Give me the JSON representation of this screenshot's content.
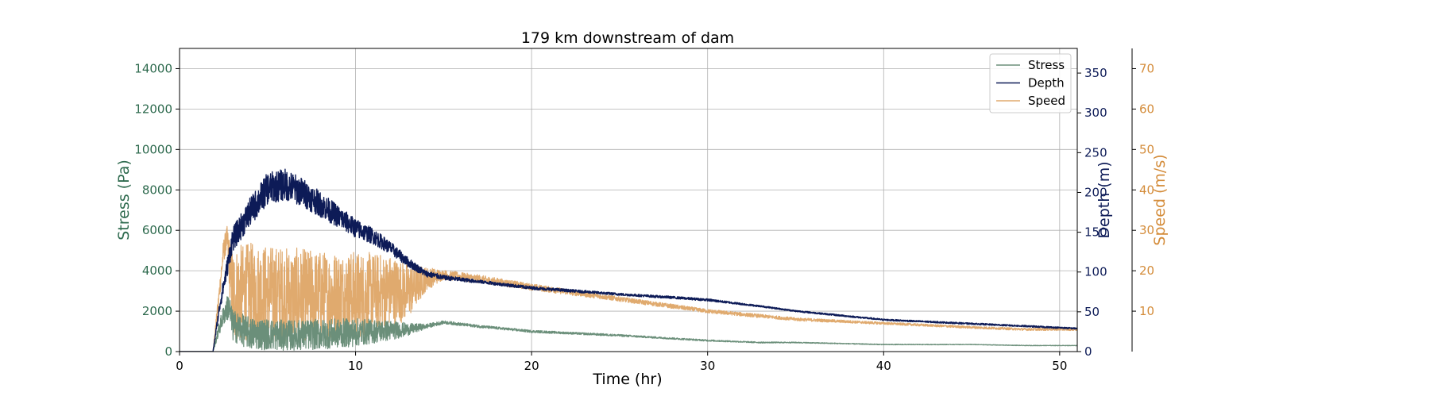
{
  "chart_data": {
    "type": "line",
    "title": "179 km downstream of dam",
    "xlabel": "Time (hr)",
    "xlim": [
      0,
      51
    ],
    "xticks": [
      0,
      10,
      20,
      30,
      40,
      50
    ],
    "grid": true,
    "legend_position": "top-right",
    "axes": {
      "stress": {
        "label": "Stress (Pa)",
        "color": "#2f6b4f",
        "ylim": [
          0,
          15000
        ],
        "ticks": [
          0,
          2000,
          4000,
          6000,
          8000,
          10000,
          12000,
          14000
        ]
      },
      "depth": {
        "label": "Depth (m)",
        "color": "#0d1b57",
        "ylim": [
          0,
          381
        ],
        "ticks": [
          0,
          50,
          100,
          150,
          200,
          250,
          300,
          350
        ]
      },
      "speed": {
        "label": "Speed (m/s)",
        "color": "#d48c3a",
        "ylim": [
          0,
          75
        ],
        "ticks": [
          10,
          20,
          30,
          40,
          50,
          60,
          70
        ]
      }
    },
    "series": [
      {
        "name": "Stress",
        "axis": "stress",
        "color": "#6b8f7a",
        "x": [
          0,
          1.9,
          2.2,
          2.5,
          2.8,
          3,
          4,
          6,
          8,
          10,
          12,
          13,
          14,
          15,
          17,
          20,
          25,
          30,
          33,
          35,
          40,
          45,
          48,
          51
        ],
        "y": [
          0,
          0,
          1000,
          1800,
          2300,
          1300,
          900,
          800,
          850,
          950,
          1050,
          1100,
          1250,
          1450,
          1250,
          1000,
          800,
          550,
          450,
          450,
          350,
          350,
          300,
          300
        ],
        "noise": [
          0,
          0,
          300,
          500,
          700,
          800,
          800,
          750,
          750,
          700,
          500,
          300,
          120,
          80,
          70,
          60,
          50,
          40,
          30,
          25,
          20,
          15,
          15,
          12
        ]
      },
      {
        "name": "Depth",
        "axis": "depth",
        "color": "#0d1b57",
        "x": [
          0,
          1.9,
          2.3,
          2.7,
          3,
          4,
          5,
          6,
          7,
          8,
          9,
          10,
          11,
          12,
          13,
          14,
          15,
          17,
          20,
          25,
          28,
          30,
          33,
          35,
          40,
          45,
          48,
          51
        ],
        "y": [
          0,
          0,
          60,
          105,
          140,
          175,
          205,
          210,
          200,
          185,
          170,
          155,
          145,
          130,
          112,
          98,
          93,
          88,
          80,
          72,
          68,
          65,
          57,
          51,
          40,
          35,
          32,
          29
        ],
        "noise": [
          0,
          0,
          8,
          12,
          15,
          18,
          20,
          20,
          18,
          16,
          14,
          12,
          10,
          8,
          6,
          4,
          3,
          2,
          2,
          1.5,
          1.5,
          1.5,
          1,
          1,
          1,
          1,
          1,
          1
        ]
      },
      {
        "name": "Speed",
        "axis": "speed",
        "color": "#e0aa6e",
        "x": [
          0,
          1.9,
          2.2,
          2.5,
          2.7,
          3,
          4,
          6,
          8,
          10,
          12,
          13,
          14,
          15,
          17,
          20,
          25,
          30,
          35,
          40,
          45,
          48,
          51
        ],
        "y": [
          0,
          0,
          12,
          25,
          28,
          14,
          15,
          14,
          14,
          14,
          15,
          15,
          18,
          19,
          18,
          16,
          13,
          10,
          8,
          7,
          6,
          5.5,
          5.5
        ],
        "noise": [
          0,
          0,
          2,
          3,
          3,
          12,
          12,
          12,
          11,
          11,
          9,
          7,
          3,
          1.2,
          1,
          0.8,
          0.6,
          0.5,
          0.4,
          0.3,
          0.3,
          0.3,
          0.3
        ]
      }
    ]
  }
}
